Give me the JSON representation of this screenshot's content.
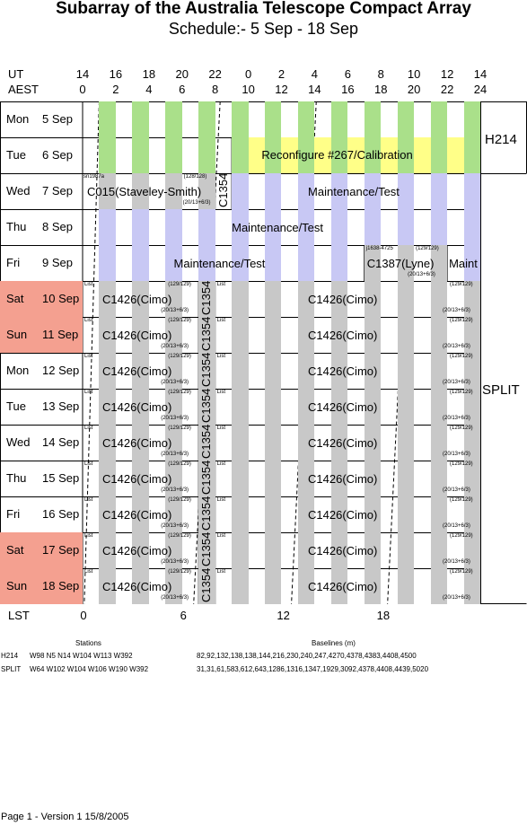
{
  "title": "Subarray of the Australia Telescope Compact Array",
  "subtitle": "Schedule:- 5  Sep - 18 Sep",
  "axes": {
    "ut_label": "UT",
    "aest_label": "AEST",
    "lst_label": "LST",
    "ut_ticks": [
      "14",
      "16",
      "18",
      "20",
      "22",
      "0",
      "2",
      "4",
      "6",
      "8",
      "10",
      "12",
      "14"
    ],
    "aest_ticks": [
      "0",
      "2",
      "4",
      "6",
      "8",
      "10",
      "12",
      "14",
      "16",
      "18",
      "20",
      "22",
      "24"
    ],
    "lst_ticks": [
      "0",
      "6",
      "12",
      "18"
    ]
  },
  "days": [
    {
      "weekday": "Mon",
      "date": "5 Sep",
      "weekend": false
    },
    {
      "weekday": "Tue",
      "date": "6 Sep",
      "weekend": false
    },
    {
      "weekday": "Wed",
      "date": "7 Sep",
      "weekend": false
    },
    {
      "weekday": "Thu",
      "date": "8 Sep",
      "weekend": false
    },
    {
      "weekday": "Fri",
      "date": "9 Sep",
      "weekend": false
    },
    {
      "weekday": "Sat",
      "date": "10 Sep",
      "weekend": true
    },
    {
      "weekday": "Sun",
      "date": "11 Sep",
      "weekend": true
    },
    {
      "weekday": "Mon",
      "date": "12 Sep",
      "weekend": false
    },
    {
      "weekday": "Tue",
      "date": "13 Sep",
      "weekend": false
    },
    {
      "weekday": "Wed",
      "date": "14 Sep",
      "weekend": false
    },
    {
      "weekday": "Thu",
      "date": "15 Sep",
      "weekend": false
    },
    {
      "weekday": "Fri",
      "date": "16 Sep",
      "weekend": false
    },
    {
      "weekday": "Sat",
      "date": "17 Sep",
      "weekend": true
    },
    {
      "weekday": "Sun",
      "date": "18 Sep",
      "weekend": true
    }
  ],
  "configs": {
    "first": "H214",
    "second": "SPLIT"
  },
  "colors": {
    "green": "#aae08a",
    "yellow": "#ffff88",
    "blue": "#c8c8f4",
    "grey": "#c8c8c8",
    "weekend": "#f4a090"
  },
  "events": {
    "reconfigure": "Reconfigure #267/Calibration",
    "wed_project": "C015(Staveley-Smith)",
    "wed_src": "sn1987a",
    "wed_ant": "(128/128)",
    "wed_ver": "(20/13+6/3)",
    "wed_vertical": "C1354",
    "wed_maint": "Maintenance/Test",
    "thu_maint": "Maintenance/Test",
    "fri_maint": "Maintenance/Test",
    "fri_project": "C1387(Lyne)",
    "fri_src": "j1638-4725",
    "fri_ant": "(129/129)",
    "fri_ver": "(20/13+6/3)",
    "fri_maint_short": "Maint"
  },
  "weekly": {
    "project": "C1426(Cimo)",
    "src": "List",
    "ant": "(129/129)",
    "ver": "(20/13+6/3)",
    "vertical": "C1354"
  },
  "stations_header": "Stations",
  "baselines_header": "Baselines (m)",
  "rows": [
    {
      "config": "H214",
      "stations": "W98 N5 N14 W104 W113 W392",
      "baselines": "82,92,132,138,138,144,216,230,240,247,4270,4378,4383,4408,4500"
    },
    {
      "config": "SPLIT",
      "stations": "W64 W102 W104 W106 W190 W392",
      "baselines": "31,31,61,583,612,643,1286,1316,1347,1929,3092,4378,4408,4439,5020"
    }
  ],
  "page_footer": "Page 1 - Version 1  15/8/2005"
}
